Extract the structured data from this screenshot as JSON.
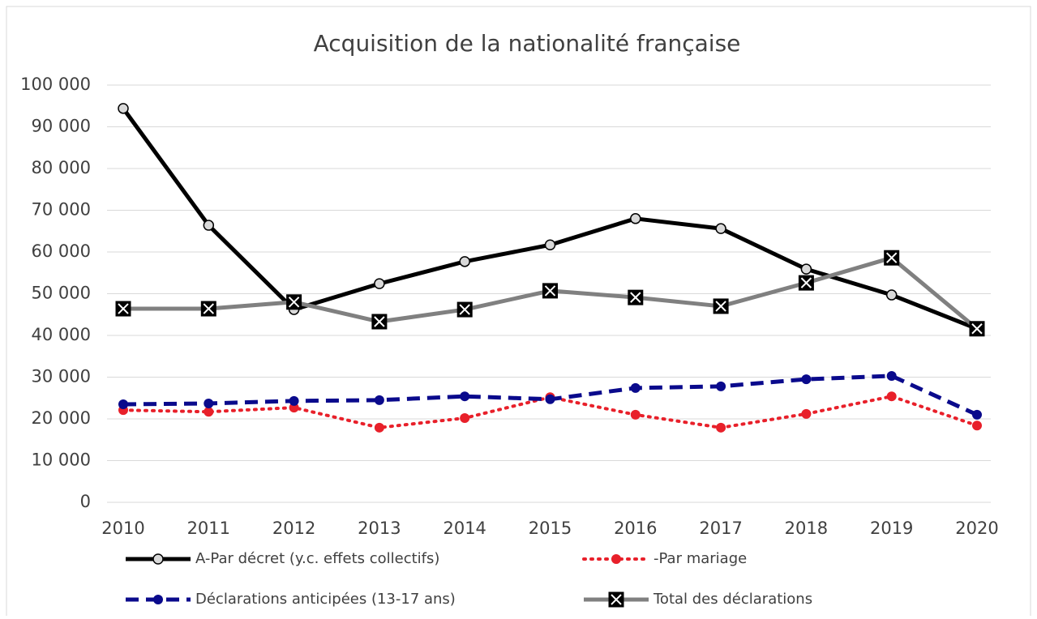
{
  "chart_data": {
    "type": "line",
    "title": "Acquisition de la nationalité française",
    "categories": [
      "2010",
      "2011",
      "2012",
      "2013",
      "2014",
      "2015",
      "2016",
      "2017",
      "2018",
      "2019",
      "2020"
    ],
    "series": [
      {
        "name": "A-Par décret (y.c. effets collectifs)",
        "color": "#000000",
        "line_style": "solid",
        "marker": "circle-open",
        "values": [
          94400,
          66400,
          46200,
          52400,
          57700,
          61700,
          68000,
          65600,
          55900,
          49700,
          41600
        ]
      },
      {
        "name": "-Par mariage",
        "color": "#e8202a",
        "line_style": "dotted",
        "marker": "circle",
        "values": [
          22100,
          21700,
          22700,
          17900,
          20200,
          25200,
          21000,
          17900,
          21200,
          25400,
          18400
        ]
      },
      {
        "name": "Déclarations anticipées (13-17 ans)",
        "color": "#0a0a8c",
        "line_style": "dashed",
        "marker": "circle",
        "values": [
          23500,
          23700,
          24300,
          24500,
          25400,
          24700,
          27400,
          27800,
          29500,
          30300,
          21000
        ]
      },
      {
        "name": "Total des déclarations",
        "color": "#808080",
        "line_style": "solid",
        "marker": "square-x",
        "values": [
          46400,
          46400,
          48000,
          43300,
          46200,
          50700,
          49100,
          47000,
          52600,
          58600,
          41600
        ]
      }
    ],
    "ylim": [
      0,
      100000
    ],
    "yticks": [
      0,
      {
        "value": 10000,
        "label": "10 000"
      },
      {
        "value": 20000,
        "label": "20 000"
      },
      {
        "value": 30000,
        "label": "30 000"
      },
      {
        "value": 40000,
        "label": "40 000"
      },
      {
        "value": 50000,
        "label": "50 000"
      },
      {
        "value": 60000,
        "label": "60 000"
      },
      {
        "value": 70000,
        "label": "70 000"
      },
      {
        "value": 80000,
        "label": "80 000"
      },
      {
        "value": 90000,
        "label": "90 000"
      },
      {
        "value": 100000,
        "label": "100 000"
      }
    ],
    "grid": true,
    "legend": "bottom"
  }
}
